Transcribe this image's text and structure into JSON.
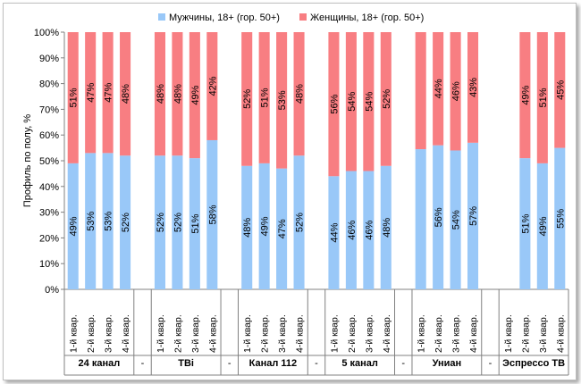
{
  "chart_data": {
    "type": "bar",
    "stacked": true,
    "percent_stacked": true,
    "ylabel": "Профиль по полу, %",
    "ylim": [
      0,
      100
    ],
    "yticks": [
      "0%",
      "10%",
      "20%",
      "30%",
      "40%",
      "50%",
      "60%",
      "70%",
      "80%",
      "90%",
      "100%"
    ],
    "legend_position": "top",
    "grid": false,
    "gap_marker": "-",
    "series": [
      {
        "name": "Мужчины, 18+ (гор. 50+)",
        "color": "#99c8f8"
      },
      {
        "name": "Женщины, 18+ (гор. 50+)",
        "color": "#f87e82"
      }
    ],
    "groups": [
      {
        "name": "24 канал",
        "categories": [
          "1-й квар.",
          "2-й квар.",
          "3-й квар.",
          "4-й квар."
        ],
        "men": [
          49,
          53,
          53,
          52
        ],
        "women": [
          51,
          47,
          47,
          48
        ],
        "men_labels": [
          "49%",
          "53%",
          "53%",
          "52%"
        ],
        "women_labels": [
          "51%",
          "47%",
          "47%",
          "48%"
        ]
      },
      {
        "name": "ТВі",
        "categories": [
          "1-й квар.",
          "2-й квар.",
          "3-й квар.",
          "4-й квар."
        ],
        "men": [
          52,
          52,
          51,
          58
        ],
        "women": [
          48,
          48,
          49,
          42
        ],
        "men_labels": [
          "52%",
          "52%",
          "51%",
          "58%"
        ],
        "women_labels": [
          "48%",
          "48%",
          "49%",
          "42%"
        ]
      },
      {
        "name": "Канал 112",
        "categories": [
          "1-й квар.",
          "2-й квар.",
          "3-й квар.",
          "4-й квар."
        ],
        "men": [
          48,
          49,
          47,
          52
        ],
        "women": [
          52,
          51,
          53,
          48
        ],
        "men_labels": [
          "48%",
          "49%",
          "47%",
          "52%"
        ],
        "women_labels": [
          "52%",
          "51%",
          "53%",
          "48%"
        ]
      },
      {
        "name": "5 канал",
        "categories": [
          "1-й квар.",
          "2-й квар.",
          "3-й квар.",
          "4-й квар."
        ],
        "men": [
          44,
          46,
          46,
          48
        ],
        "women": [
          56,
          54,
          54,
          52
        ],
        "men_labels": [
          "44%",
          "46%",
          "46%",
          "48%"
        ],
        "women_labels": [
          "56%",
          "54%",
          "54%",
          "52%"
        ]
      },
      {
        "name": "Униан",
        "categories": [
          "1-й квар.",
          "2-й квар.",
          "3-й квар.",
          "4-й квар."
        ],
        "men": [
          54.5,
          56,
          54,
          57
        ],
        "women": [
          45.5,
          44,
          46,
          43
        ],
        "men_labels": [
          "",
          "56%",
          "54%",
          "57%"
        ],
        "women_labels": [
          "",
          "44%",
          "46%",
          "43%"
        ]
      },
      {
        "name": "Эспрессо ТВ",
        "categories": [
          "1-й квар.",
          "2-й квар.",
          "3-й квар.",
          "4-й квар."
        ],
        "men": [
          null,
          51,
          49,
          55
        ],
        "women": [
          null,
          49,
          51,
          45
        ],
        "men_labels": [
          "",
          "51%",
          "49%",
          "55%"
        ],
        "women_labels": [
          "",
          "49%",
          "51%",
          "45%"
        ]
      }
    ]
  }
}
